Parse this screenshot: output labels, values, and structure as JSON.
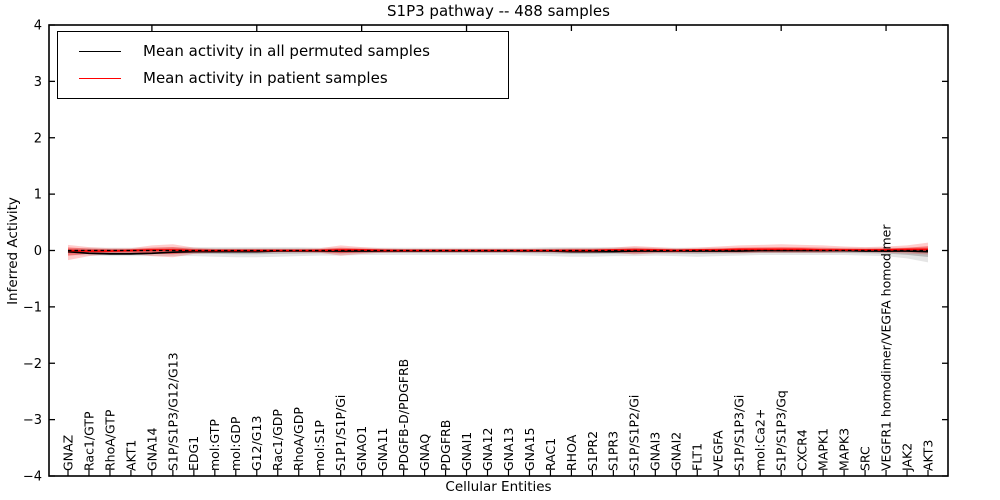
{
  "figure": {
    "title": "S1P3 pathway -- 488 samples",
    "background": "#ffffff"
  },
  "legend": {
    "position": "upper left",
    "entries": [
      {
        "label": "Mean activity in all permuted samples",
        "color": "#000000"
      },
      {
        "label": "Mean activity in patient samples",
        "color": "#ff0000"
      }
    ]
  },
  "chart_data": {
    "type": "line",
    "title": "S1P3 pathway -- 488 samples",
    "xlabel": "Cellular Entities",
    "ylabel": "Inferred Activity",
    "ylim": [
      -4,
      4
    ],
    "grid": false,
    "legend_position": "upper left",
    "yticks": [
      4,
      3,
      2,
      1,
      0,
      -1,
      -2,
      -3,
      -4
    ],
    "ytick_labels": [
      "4",
      "3",
      "2",
      "1",
      "0",
      "−1",
      "−2",
      "−3",
      "−4"
    ],
    "categories": [
      "GNAZ",
      "Rac1/GTP",
      "RhoA/GTP",
      "AKT1",
      "GNA14",
      "S1P/S1P3/G12/G13",
      "EDG1",
      "mol:GTP",
      "mol:GDP",
      "G12/G13",
      "Rac1/GDP",
      "RhoA/GDP",
      "mol:S1P",
      "S1P1/S1P/Gi",
      "GNAO1",
      "GNA11",
      "PDGFB-D/PDGFRB",
      "GNAQ",
      "PDGFRB",
      "GNAI1",
      "GNA12",
      "GNA13",
      "GNA15",
      "RAC1",
      "RHOA",
      "S1PR2",
      "S1PR3",
      "S1P/S1P2/Gi",
      "GNAI3",
      "GNAI2",
      "FLT1",
      "VEGFA",
      "S1P/S1P3/Gi",
      "mol:Ca2+",
      "S1P/S1P3/Gq",
      "CXCR4",
      "MAPK1",
      "MAPK3",
      "SRC",
      "VEGFR1 homodimer/VEGFA homodimer",
      "JAK2",
      "AKT3"
    ],
    "zero_line": {
      "y": 0,
      "style": "dashed",
      "color": "#000000"
    },
    "series": [
      {
        "name": "Mean activity in all permuted samples",
        "color": "#000000",
        "values": [
          -0.02,
          -0.05,
          -0.06,
          -0.06,
          -0.05,
          -0.03,
          -0.02,
          -0.02,
          -0.02,
          -0.02,
          -0.01,
          -0.01,
          -0.01,
          -0.01,
          -0.01,
          -0.01,
          -0.01,
          -0.01,
          -0.01,
          -0.01,
          -0.01,
          -0.01,
          -0.01,
          -0.01,
          -0.02,
          -0.02,
          -0.02,
          -0.01,
          -0.01,
          -0.01,
          -0.01,
          -0.01,
          -0.01,
          0.0,
          0.0,
          0.0,
          0.0,
          0.0,
          -0.01,
          -0.01,
          -0.01,
          -0.02
        ]
      },
      {
        "name": "Mean activity in patient samples",
        "color": "#ff0000",
        "values": [
          0.0,
          -0.01,
          -0.01,
          0.0,
          0.01,
          0.01,
          0.0,
          0.0,
          0.0,
          0.0,
          0.0,
          0.0,
          0.0,
          0.01,
          0.01,
          0.0,
          0.0,
          0.0,
          0.0,
          0.0,
          0.0,
          0.0,
          0.0,
          0.0,
          0.0,
          0.0,
          0.01,
          0.01,
          0.01,
          0.0,
          0.01,
          0.01,
          0.02,
          0.02,
          0.02,
          0.02,
          0.01,
          0.01,
          0.01,
          0.01,
          0.02,
          0.02
        ]
      }
    ],
    "bands": [
      {
        "name": "permuted-samples-range",
        "color": "#000000",
        "opacity": 0.1,
        "upper": [
          0.04,
          0.05,
          0.05,
          0.05,
          0.05,
          0.06,
          0.06,
          0.06,
          0.06,
          0.06,
          0.06,
          0.06,
          0.05,
          0.05,
          0.05,
          0.05,
          0.05,
          0.05,
          0.05,
          0.05,
          0.05,
          0.05,
          0.05,
          0.06,
          0.06,
          0.06,
          0.06,
          0.06,
          0.05,
          0.05,
          0.05,
          0.05,
          0.05,
          0.05,
          0.05,
          0.05,
          0.05,
          0.05,
          0.05,
          0.05,
          0.05,
          0.06
        ],
        "lower": [
          -0.08,
          -0.09,
          -0.1,
          -0.1,
          -0.1,
          -0.1,
          -0.1,
          -0.11,
          -0.12,
          -0.12,
          -0.11,
          -0.1,
          -0.09,
          -0.09,
          -0.08,
          -0.08,
          -0.08,
          -0.08,
          -0.08,
          -0.08,
          -0.08,
          -0.08,
          -0.09,
          -0.1,
          -0.11,
          -0.11,
          -0.1,
          -0.1,
          -0.09,
          -0.1,
          -0.11,
          -0.1,
          -0.09,
          -0.08,
          -0.08,
          -0.08,
          -0.08,
          -0.08,
          -0.09,
          -0.1,
          -0.14,
          -0.21
        ]
      },
      {
        "name": "patient-samples-range",
        "color": "#ff0000",
        "opacity": 0.2,
        "upper": [
          0.1,
          0.06,
          0.04,
          0.04,
          0.09,
          0.11,
          0.05,
          0.03,
          0.03,
          0.03,
          0.03,
          0.03,
          0.04,
          0.09,
          0.06,
          0.04,
          0.03,
          0.03,
          0.03,
          0.03,
          0.03,
          0.03,
          0.03,
          0.03,
          0.04,
          0.04,
          0.05,
          0.08,
          0.06,
          0.04,
          0.05,
          0.07,
          0.09,
          0.1,
          0.11,
          0.1,
          0.09,
          0.07,
          0.06,
          0.07,
          0.09,
          0.14
        ],
        "lower": [
          -0.17,
          -0.1,
          -0.06,
          -0.06,
          -0.1,
          -0.12,
          -0.06,
          -0.04,
          -0.03,
          -0.03,
          -0.03,
          -0.03,
          -0.04,
          -0.09,
          -0.06,
          -0.04,
          -0.03,
          -0.03,
          -0.03,
          -0.03,
          -0.03,
          -0.03,
          -0.03,
          -0.03,
          -0.04,
          -0.04,
          -0.04,
          -0.07,
          -0.05,
          -0.04,
          -0.04,
          -0.04,
          -0.05,
          -0.04,
          -0.04,
          -0.04,
          -0.04,
          -0.03,
          -0.03,
          -0.04,
          -0.05,
          -0.07
        ]
      }
    ]
  }
}
